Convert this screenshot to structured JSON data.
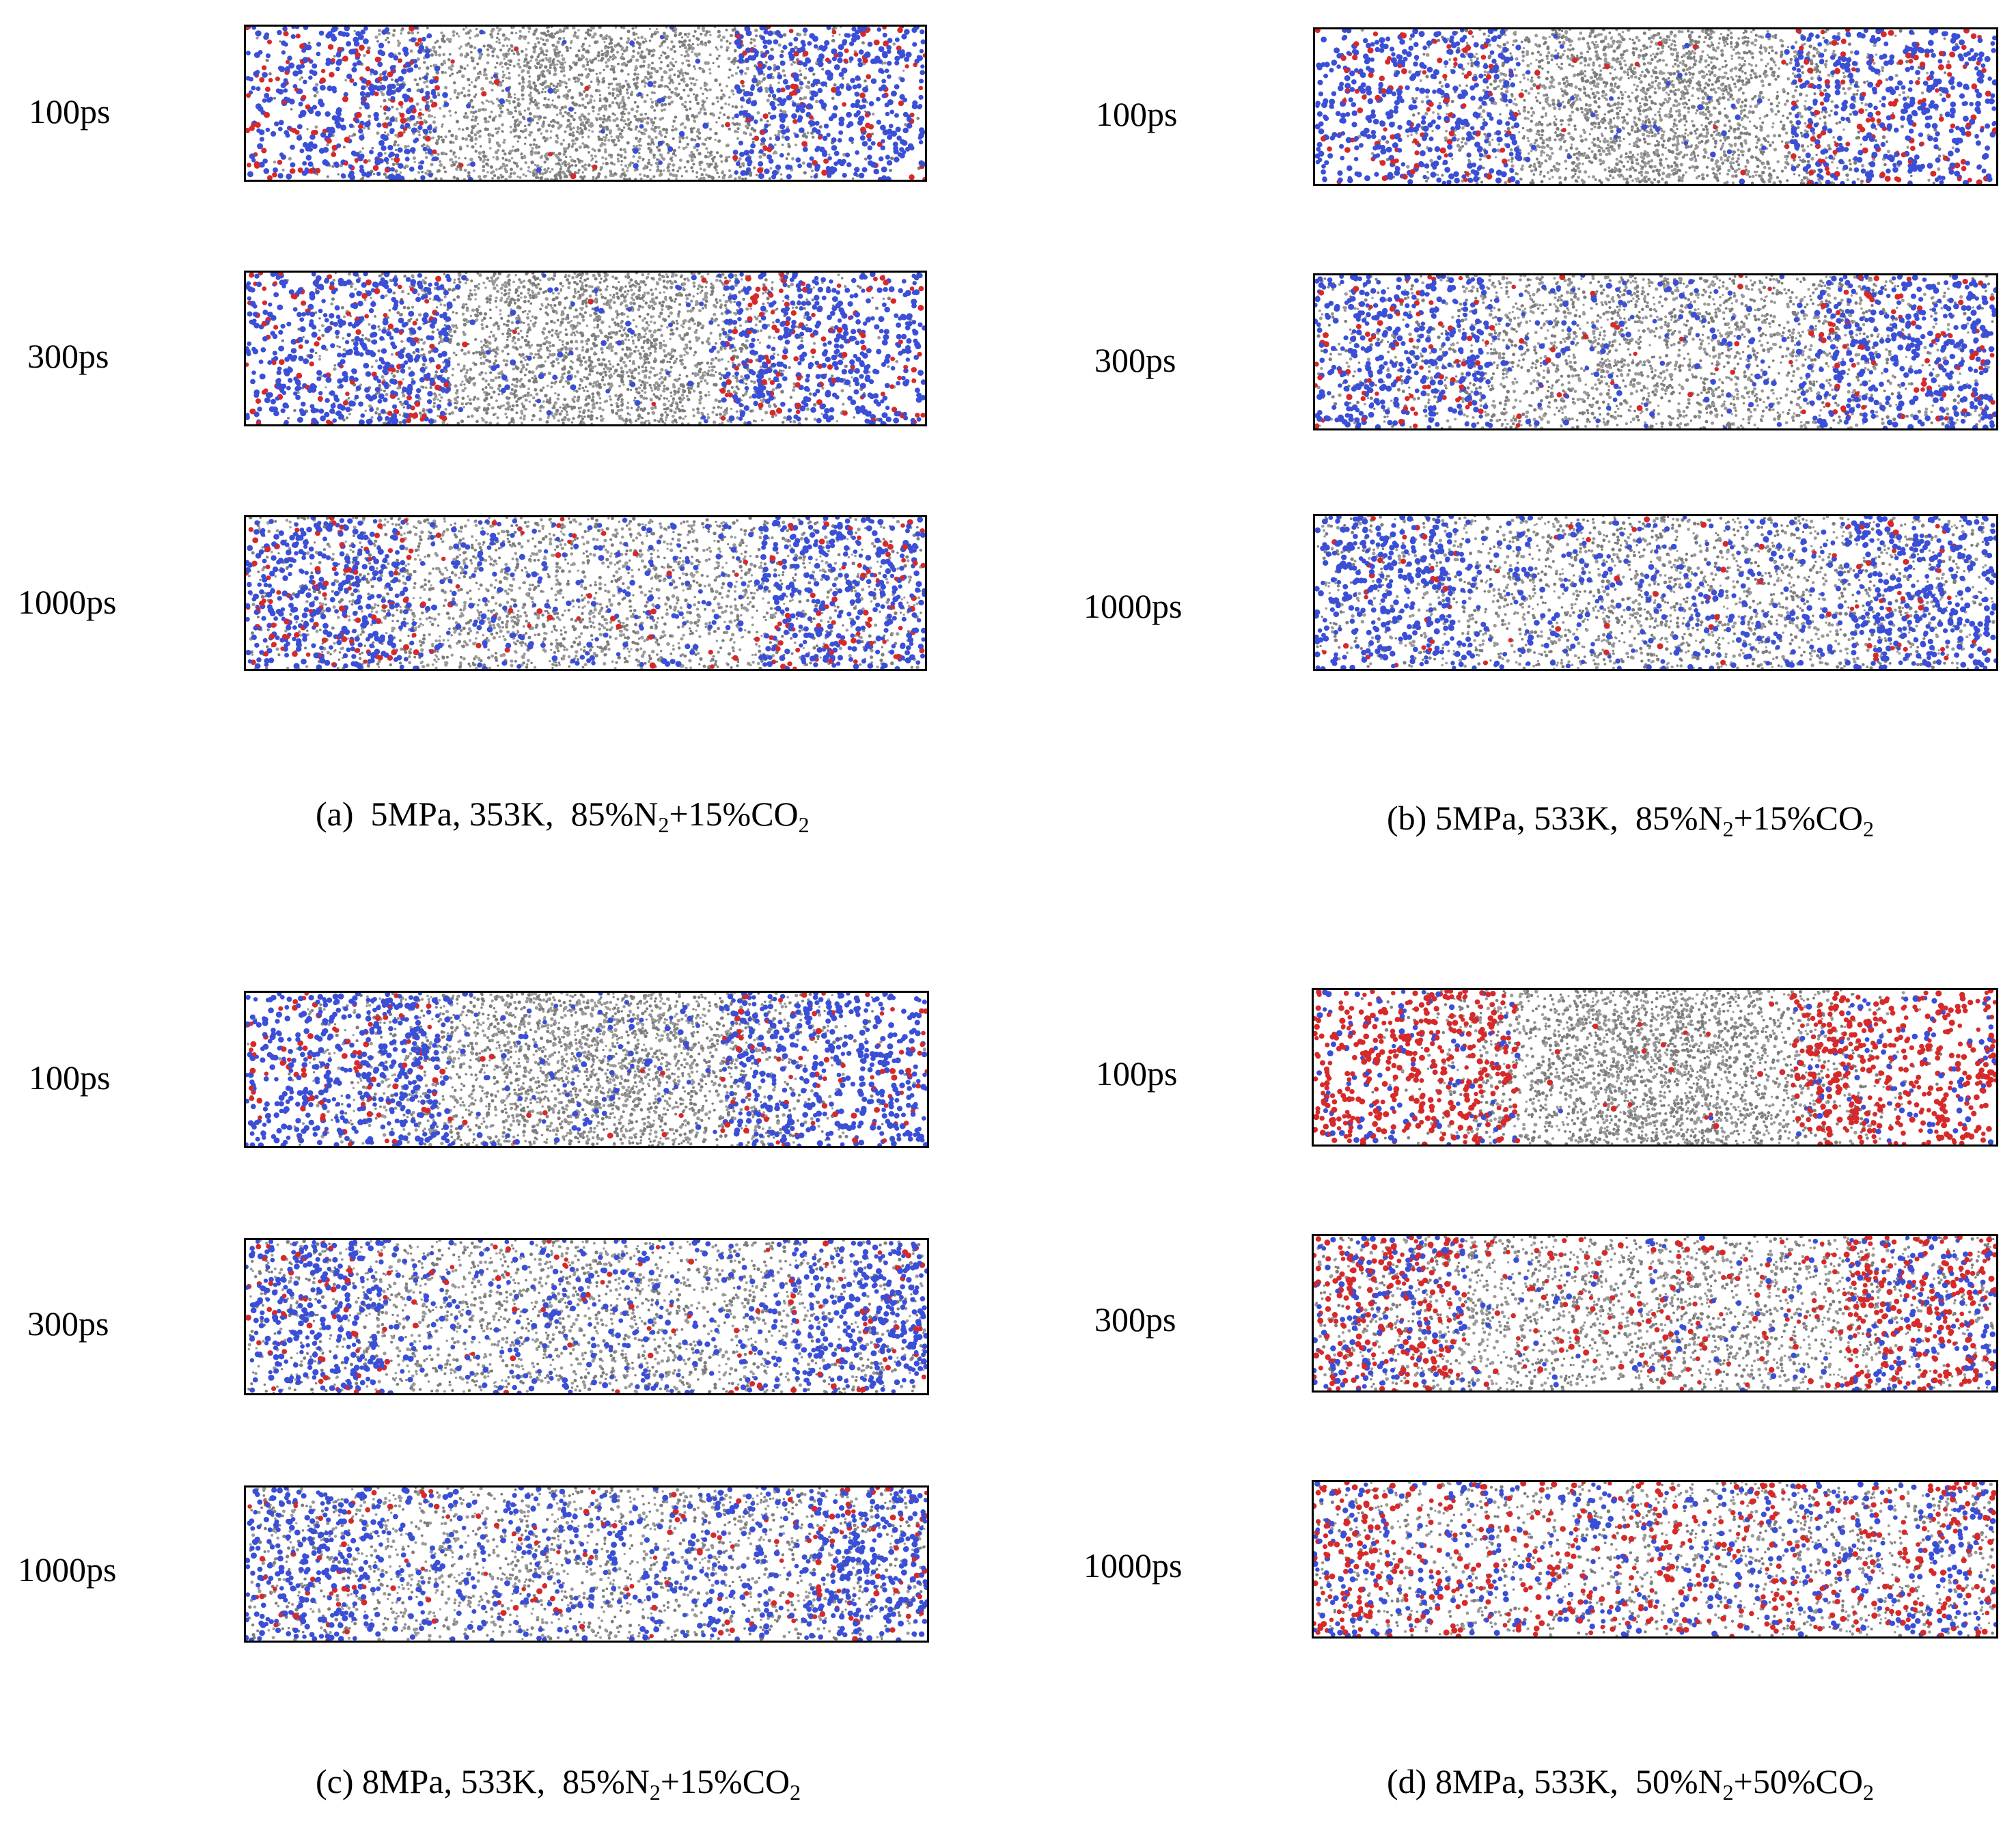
{
  "panels": [
    {
      "rows": [
        {
          "label": "100ps"
        },
        {
          "label": "300ps"
        },
        {
          "label": "1000ps"
        }
      ],
      "caption": {
        "tag": "(a)",
        "conditions": "5MPa, 353K,",
        "n2_pct": "85%N",
        "co2_pct": "+15%CO",
        "sub": "2"
      }
    },
    {
      "rows": [
        {
          "label": "100ps"
        },
        {
          "label": "300ps"
        },
        {
          "label": "1000ps"
        }
      ],
      "caption": {
        "tag": "(b)",
        "conditions": "5MPa, 533K,",
        "n2_pct": "85%N",
        "co2_pct": "+15%CO",
        "sub": "2"
      }
    },
    {
      "rows": [
        {
          "label": "100ps"
        },
        {
          "label": "300ps"
        },
        {
          "label": "1000ps"
        }
      ],
      "caption": {
        "tag": "(c)",
        "conditions": "8MPa, 533K,",
        "n2_pct": "85%N",
        "co2_pct": "+15%CO",
        "sub": "2"
      }
    },
    {
      "rows": [
        {
          "label": "100ps"
        },
        {
          "label": "300ps"
        },
        {
          "label": "1000ps"
        }
      ],
      "caption": {
        "tag": "(d)",
        "conditions": "8MPa, 533K,",
        "n2_pct": "50%N",
        "co2_pct": "+50%CO",
        "sub": "2"
      }
    }
  ],
  "colors": {
    "n2": "#3a4fd6",
    "co2": "#d62a2a",
    "oil": "#9a9a9a",
    "border": "#000000"
  }
}
